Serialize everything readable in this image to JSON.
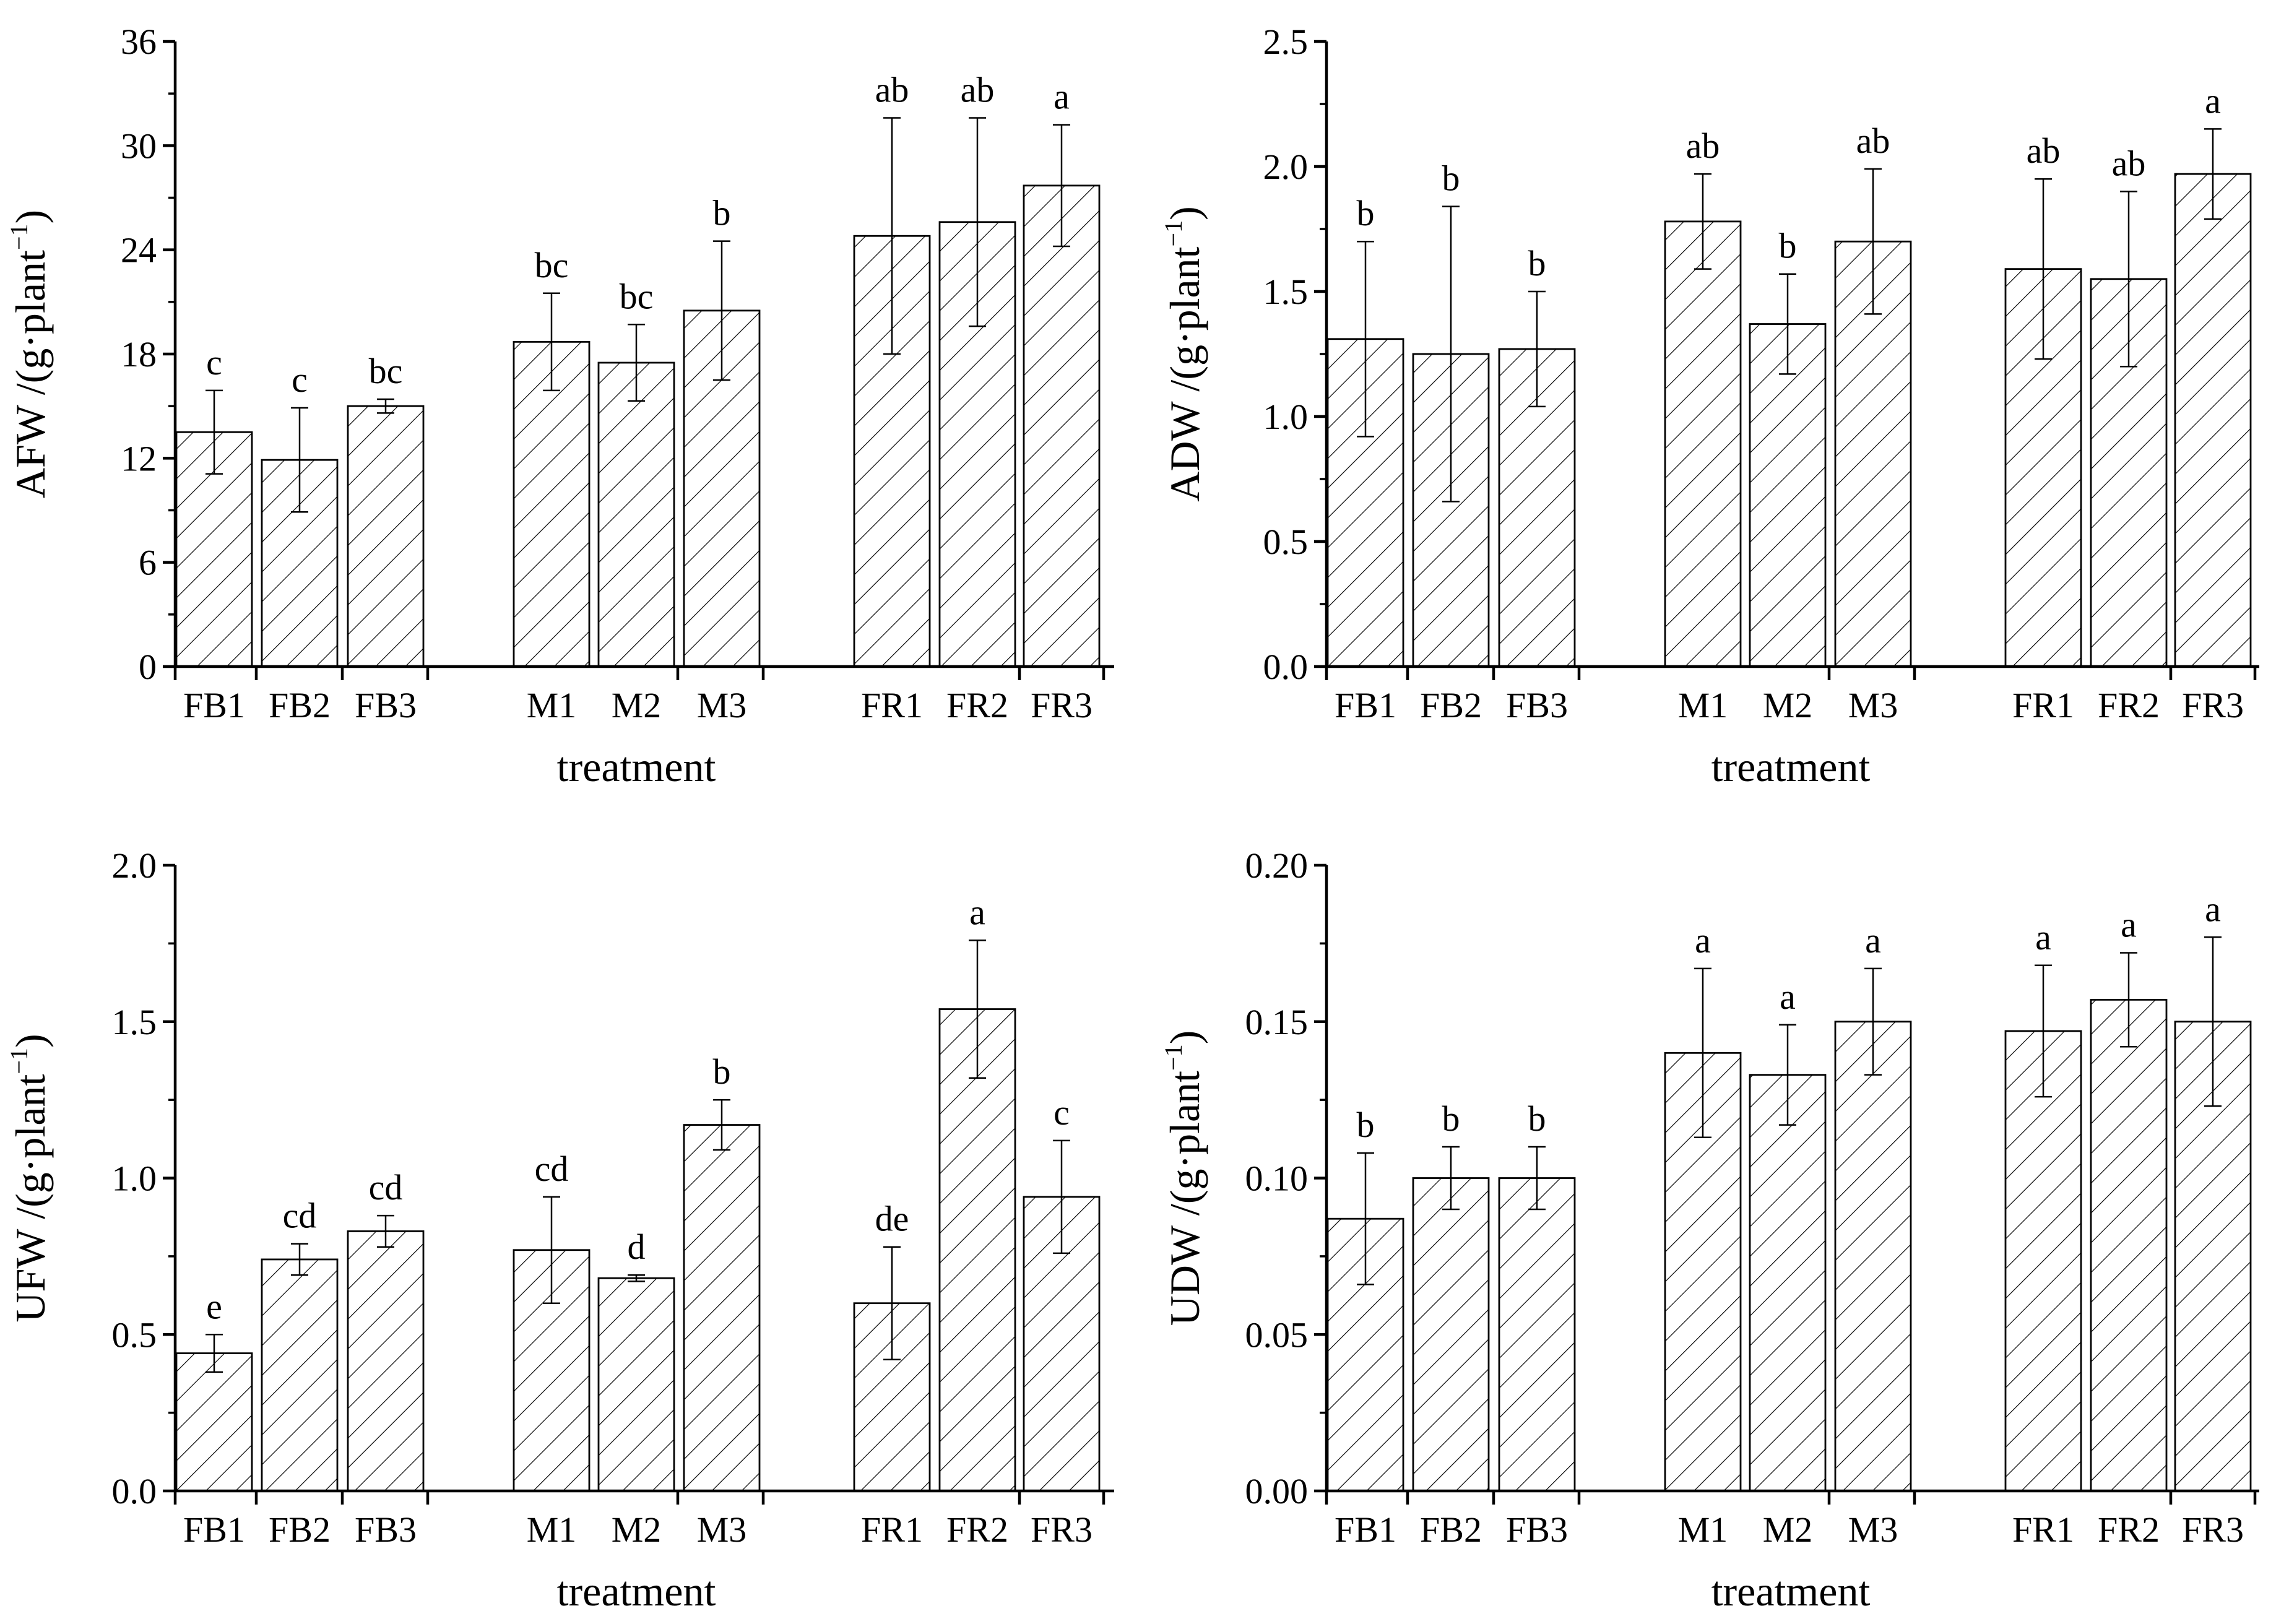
{
  "chart_data": [
    {
      "id": "afw",
      "type": "bar",
      "ylabel_main": "AFW /(g·plant",
      "ylabel_sup": "−1",
      "ylabel_tail": ")",
      "xlabel": "treatment",
      "ylim": [
        0,
        36
      ],
      "yticks": [
        0,
        6,
        12,
        18,
        24,
        30,
        36
      ],
      "ytick_labels": [
        "0",
        "6",
        "12",
        "18",
        "24",
        "30",
        "36"
      ],
      "groups": [
        [
          "FB1",
          "FB2",
          "FB3"
        ],
        [
          "M1",
          "M2",
          "M3"
        ],
        [
          "FR1",
          "FR2",
          "FR3"
        ]
      ],
      "categories": [
        "FB1",
        "FB2",
        "FB3",
        "M1",
        "M2",
        "M3",
        "FR1",
        "FR2",
        "FR3"
      ],
      "values": [
        13.5,
        11.9,
        15.0,
        18.7,
        17.5,
        20.5,
        24.8,
        25.6,
        27.7
      ],
      "errors": [
        2.4,
        3.0,
        0.4,
        2.8,
        2.2,
        4.0,
        6.8,
        6.0,
        3.5
      ],
      "letters": [
        "c",
        "c",
        "bc",
        "bc",
        "bc",
        "b",
        "ab",
        "ab",
        "a"
      ]
    },
    {
      "id": "adw",
      "type": "bar",
      "ylabel_main": "ADW /(g·plant",
      "ylabel_sup": "−1",
      "ylabel_tail": ")",
      "xlabel": "treatment",
      "ylim": [
        0,
        2.5
      ],
      "yticks": [
        0,
        0.5,
        1.0,
        1.5,
        2.0,
        2.5
      ],
      "ytick_labels": [
        "0.0",
        "0.5",
        "1.0",
        "1.5",
        "2.0",
        "2.5"
      ],
      "groups": [
        [
          "FB1",
          "FB2",
          "FB3"
        ],
        [
          "M1",
          "M2",
          "M3"
        ],
        [
          "FR1",
          "FR2",
          "FR3"
        ]
      ],
      "categories": [
        "FB1",
        "FB2",
        "FB3",
        "M1",
        "M2",
        "M3",
        "FR1",
        "FR2",
        "FR3"
      ],
      "values": [
        1.31,
        1.25,
        1.27,
        1.78,
        1.37,
        1.7,
        1.59,
        1.55,
        1.97
      ],
      "errors": [
        0.39,
        0.59,
        0.23,
        0.19,
        0.2,
        0.29,
        0.36,
        0.35,
        0.18
      ],
      "letters": [
        "b",
        "b",
        "b",
        "ab",
        "b",
        "ab",
        "ab",
        "ab",
        "a"
      ]
    },
    {
      "id": "ufw",
      "type": "bar",
      "ylabel_main": "UFW /(g·plant",
      "ylabel_sup": "−1",
      "ylabel_tail": ")",
      "xlabel": "treatment",
      "ylim": [
        0,
        2.0
      ],
      "yticks": [
        0,
        0.5,
        1.0,
        1.5,
        2.0
      ],
      "ytick_labels": [
        "0.0",
        "0.5",
        "1.0",
        "1.5",
        "2.0"
      ],
      "groups": [
        [
          "FB1",
          "FB2",
          "FB3"
        ],
        [
          "M1",
          "M2",
          "M3"
        ],
        [
          "FR1",
          "FR2",
          "FR3"
        ]
      ],
      "categories": [
        "FB1",
        "FB2",
        "FB3",
        "M1",
        "M2",
        "M3",
        "FR1",
        "FR2",
        "FR3"
      ],
      "values": [
        0.44,
        0.74,
        0.83,
        0.77,
        0.68,
        1.17,
        0.6,
        1.54,
        0.94
      ],
      "errors": [
        0.06,
        0.05,
        0.05,
        0.17,
        0.01,
        0.08,
        0.18,
        0.22,
        0.18
      ],
      "letters": [
        "e",
        "cd",
        "cd",
        "cd",
        "d",
        "b",
        "de",
        "a",
        "c"
      ]
    },
    {
      "id": "udw",
      "type": "bar",
      "ylabel_main": "UDW /(g·plant",
      "ylabel_sup": "−1",
      "ylabel_tail": ")",
      "xlabel": "treatment",
      "ylim": [
        0,
        0.2
      ],
      "yticks": [
        0,
        0.05,
        0.1,
        0.15,
        0.2
      ],
      "ytick_labels": [
        "0.00",
        "0.05",
        "0.10",
        "0.15",
        "0.20"
      ],
      "groups": [
        [
          "FB1",
          "FB2",
          "FB3"
        ],
        [
          "M1",
          "M2",
          "M3"
        ],
        [
          "FR1",
          "FR2",
          "FR3"
        ]
      ],
      "categories": [
        "FB1",
        "FB2",
        "FB3",
        "M1",
        "M2",
        "M3",
        "FR1",
        "FR2",
        "FR3"
      ],
      "values": [
        0.087,
        0.1,
        0.1,
        0.14,
        0.133,
        0.15,
        0.147,
        0.157,
        0.15
      ],
      "errors": [
        0.021,
        0.01,
        0.01,
        0.027,
        0.016,
        0.017,
        0.021,
        0.015,
        0.027
      ],
      "letters": [
        "b",
        "b",
        "b",
        "a",
        "a",
        "a",
        "a",
        "a",
        "a"
      ]
    }
  ]
}
